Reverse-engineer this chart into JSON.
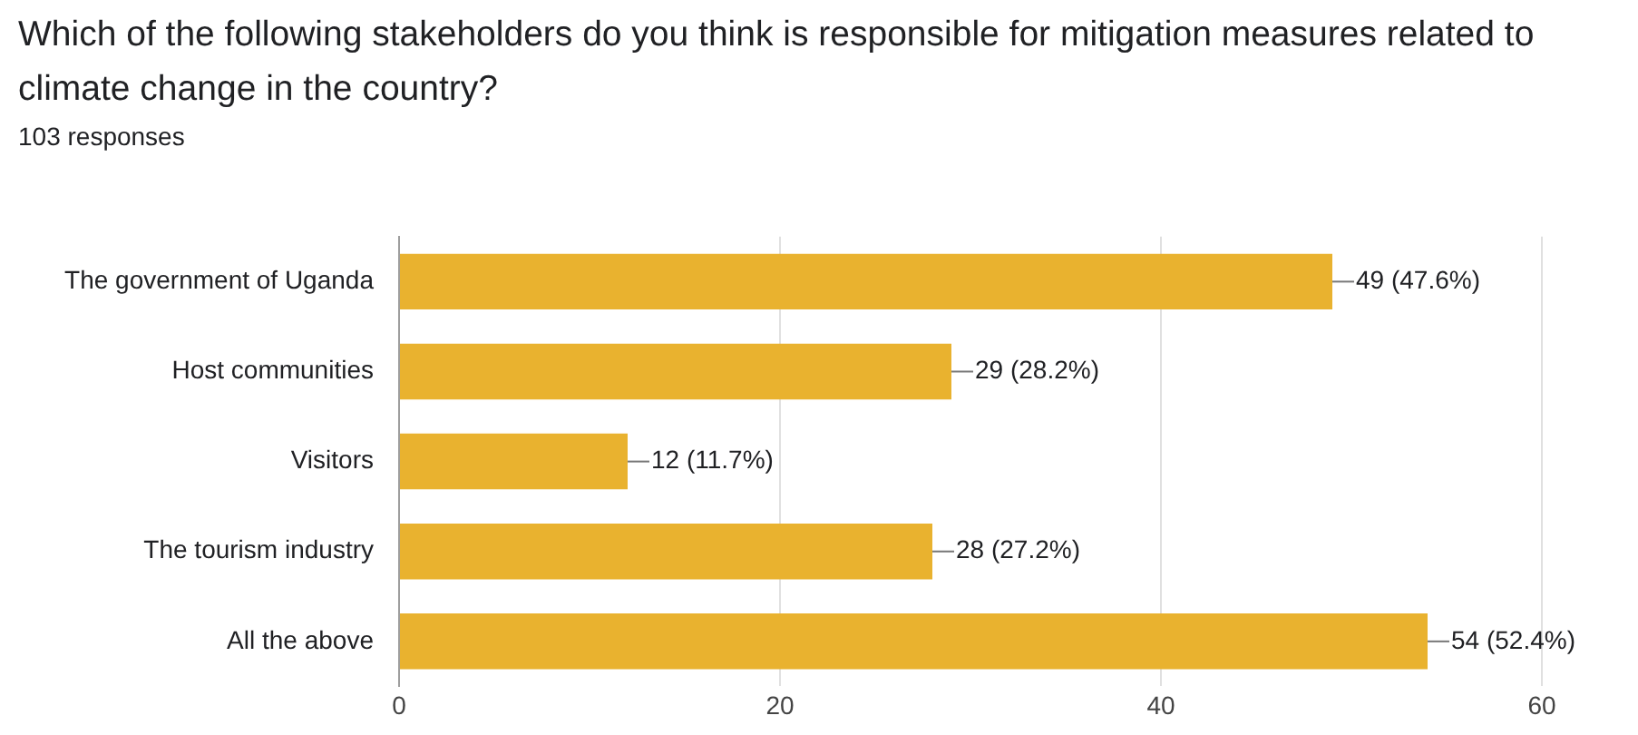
{
  "chart_data": {
    "type": "bar",
    "orientation": "horizontal",
    "title": "Which of the following stakeholders do you think is responsible for mitigation measures related to climate change in the country?",
    "subtitle": "103 responses",
    "categories": [
      "The government of Uganda",
      "Host communities",
      "Visitors",
      "The tourism industry",
      "All the above"
    ],
    "values": [
      49,
      29,
      12,
      28,
      54
    ],
    "value_labels": [
      "49 (47.6%)",
      "29 (28.2%)",
      "12 (11.7%)",
      "28 (27.2%)",
      "54 (52.4%)"
    ],
    "color": "#e9b22f",
    "xlim": [
      0,
      60
    ],
    "xticks": [
      0,
      20,
      40,
      60
    ],
    "grid": "x",
    "legend": false
  }
}
